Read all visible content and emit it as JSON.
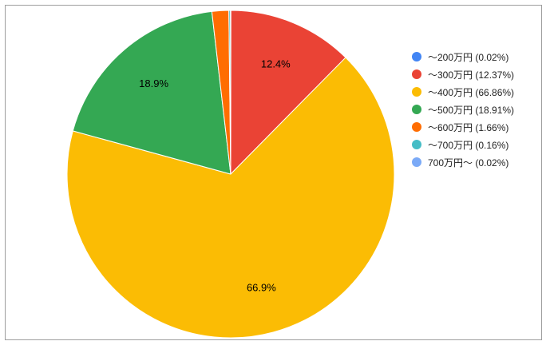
{
  "chart_data": {
    "type": "pie",
    "title": "",
    "start_angle_deg": 0,
    "direction": "clockwise",
    "slice_border_color": "#ffffff",
    "legend_position": "right",
    "slices": [
      {
        "name": "〜200万円 (0.02%)",
        "value": 0.02,
        "color": "#4285f4",
        "label": ""
      },
      {
        "name": "〜300万円 (12.37%)",
        "value": 12.37,
        "color": "#ea4335",
        "label": "12.4%"
      },
      {
        "name": "〜400万円 (66.86%)",
        "value": 66.86,
        "color": "#fbbc04",
        "label": "66.9%"
      },
      {
        "name": "〜500万円 (18.91%)",
        "value": 18.91,
        "color": "#34a853",
        "label": "18.9%"
      },
      {
        "name": "〜600万円 (1.66%)",
        "value": 1.66,
        "color": "#ff6d01",
        "label": ""
      },
      {
        "name": "〜700万円 (0.16%)",
        "value": 0.16,
        "color": "#46bdc6",
        "label": ""
      },
      {
        "name": "700万円〜 (0.02%)",
        "value": 0.02,
        "color": "#7baaf7",
        "label": ""
      }
    ]
  }
}
